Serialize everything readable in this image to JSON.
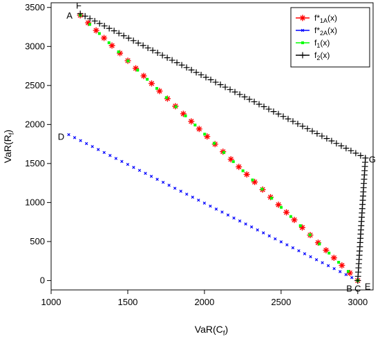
{
  "chart_data": {
    "type": "scatter",
    "xlabel_main": "VaR(C",
    "xlabel_sub": "f",
    "xlabel_close": ")",
    "ylabel_main": "VaR(R",
    "ylabel_sub": "f",
    "ylabel_close": ")",
    "xlim": [
      1000,
      3100
    ],
    "ylim": [
      -120,
      3560
    ],
    "x_ticks": [
      1000,
      1500,
      2000,
      2500,
      3000
    ],
    "y_ticks": [
      0,
      500,
      1000,
      1500,
      2000,
      2500,
      3000,
      3500
    ],
    "x_tick_labels": [
      "1000",
      "1500",
      "2000",
      "2500",
      "3000"
    ],
    "y_tick_labels": [
      "0",
      "500",
      "1000",
      "1500",
      "2000",
      "2500",
      "3000",
      "3500"
    ],
    "legend_position": "top-right",
    "series": [
      {
        "key": "f1A_star",
        "legend": {
          "base": "f*",
          "sub": "1A",
          "close": "(x)"
        },
        "color": "#ff0000",
        "marker": "asterisk",
        "segments": [
          {
            "from": [
              1190,
              3400
            ],
            "to": [
              3000,
              0
            ],
            "n": 36
          }
        ]
      },
      {
        "key": "f2A_star",
        "legend": {
          "base": "f*",
          "sub": "2A",
          "close": "(x)"
        },
        "color": "#0000ff",
        "marker": "x",
        "segments": [
          {
            "from": [
              1115,
              1870
            ],
            "to": [
              3000,
              0
            ],
            "n": 50
          }
        ]
      },
      {
        "key": "f1",
        "legend": {
          "base": "f",
          "sub": "1",
          "close": "(x)"
        },
        "color": "#00ff00",
        "marker": "square",
        "segments": [
          {
            "from": [
              1190,
              3400
            ],
            "to": [
              3000,
              0
            ],
            "n": 30
          }
        ]
      },
      {
        "key": "f2",
        "legend": {
          "base": "f",
          "sub": "2",
          "close": "(x)"
        },
        "color": "#000000",
        "marker": "plus",
        "segments": [
          {
            "from": [
              1190,
              3420
            ],
            "to": [
              3050,
              1570
            ],
            "n": 60
          },
          {
            "from": [
              3000,
              0
            ],
            "to": [
              3050,
              1570
            ],
            "n": 30
          }
        ]
      }
    ],
    "annotations": [
      {
        "text": "F",
        "x": 1180,
        "y": 3530
      },
      {
        "text": "A",
        "x": 1120,
        "y": 3400
      },
      {
        "text": "D",
        "x": 1065,
        "y": 1850
      },
      {
        "text": "G",
        "x": 3095,
        "y": 1555
      },
      {
        "text": "B",
        "x": 2945,
        "y": -100
      },
      {
        "text": "C",
        "x": 3000,
        "y": -100
      },
      {
        "text": "E",
        "x": 3065,
        "y": -70
      }
    ]
  }
}
